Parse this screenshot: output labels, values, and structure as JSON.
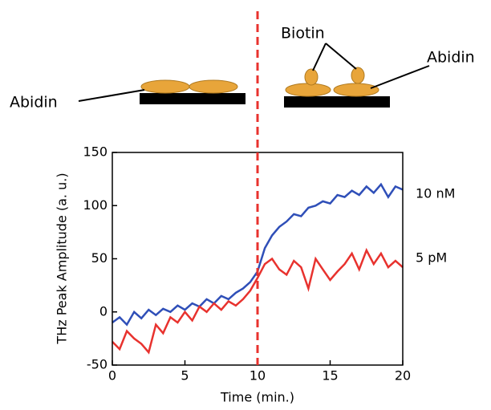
{
  "chart_data": {
    "type": "line",
    "xlabel": "Time (min.)",
    "ylabel": "THz Peak Amplitude (a. u.)",
    "annotations": [
      "Abidin",
      "Biotin",
      "Abidin"
    ],
    "x": [
      0,
      0.5,
      1,
      1.5,
      2,
      2.5,
      3,
      3.5,
      4,
      4.5,
      5,
      5.5,
      6,
      6.5,
      7,
      7.5,
      8,
      8.5,
      9,
      9.5,
      10,
      10.5,
      11,
      11.5,
      12,
      12.5,
      13,
      13.5,
      14,
      14.5,
      15,
      15.5,
      16,
      16.5,
      17,
      17.5,
      18,
      18.5,
      19,
      19.5,
      20
    ],
    "series": [
      {
        "name": "10 nM",
        "color": "#2f4fb8",
        "values": [
          -10,
          -5,
          -12,
          0,
          -6,
          2,
          -3,
          3,
          0,
          6,
          2,
          8,
          5,
          12,
          8,
          15,
          12,
          18,
          22,
          28,
          38,
          60,
          72,
          80,
          85,
          92,
          90,
          98,
          100,
          104,
          102,
          110,
          108,
          114,
          110,
          118,
          112,
          120,
          108,
          118,
          115
        ]
      },
      {
        "name": "5 pM",
        "color": "#e8322e",
        "values": [
          -28,
          -35,
          -18,
          -25,
          -30,
          -38,
          -12,
          -20,
          -5,
          -10,
          0,
          -8,
          5,
          0,
          8,
          2,
          10,
          6,
          12,
          20,
          32,
          45,
          50,
          40,
          35,
          48,
          42,
          22,
          50,
          40,
          30,
          38,
          45,
          55,
          40,
          58,
          45,
          55,
          42,
          48,
          42
        ]
      }
    ],
    "vline": 10,
    "vline_color": "#e8322e",
    "xlim": [
      0,
      20
    ],
    "xticks": [
      0,
      5,
      10,
      15,
      20
    ],
    "ylim": [
      -50,
      150
    ],
    "yticks": [
      -50,
      0,
      50,
      100,
      150
    ]
  }
}
